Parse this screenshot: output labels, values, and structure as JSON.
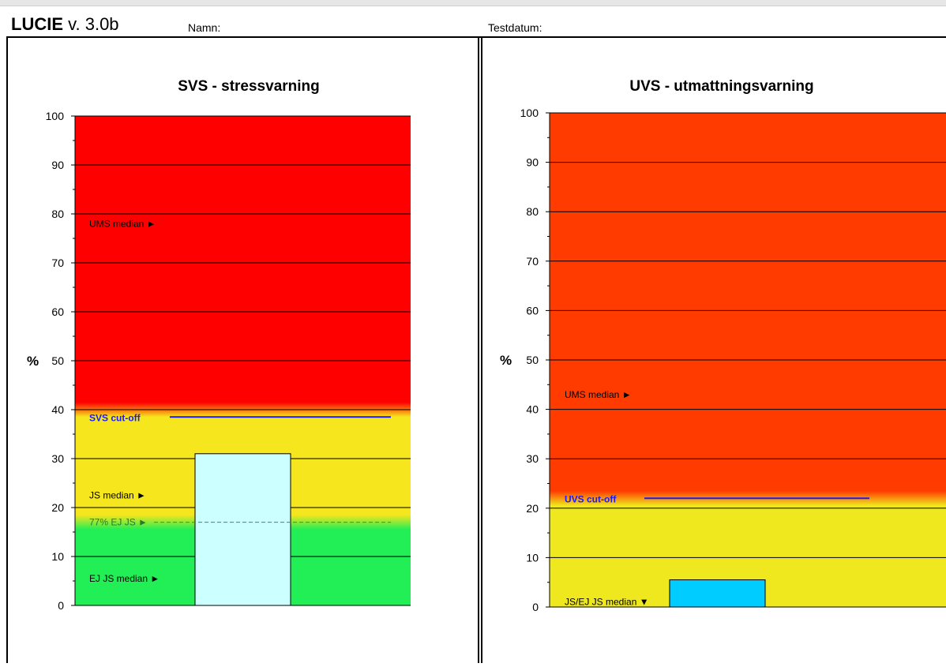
{
  "header": {
    "app_name": "LUCIE",
    "version": "v. 3.0b",
    "name_label": "Namn:",
    "date_label": "Testdatum:"
  },
  "chart_data": [
    {
      "type": "bar",
      "title": "SVS - stressvarning",
      "ylabel": "%",
      "ylim": [
        0,
        100
      ],
      "yticks": [
        0,
        10,
        20,
        30,
        40,
        50,
        60,
        70,
        80,
        90,
        100
      ],
      "grid": true,
      "background_zones": [
        {
          "from": 0,
          "to": 17,
          "color": "#22ee55"
        },
        {
          "from": 17,
          "to": 40,
          "color": "#f5e61e"
        },
        {
          "from": 40,
          "to": 100,
          "color": "#ff0000"
        }
      ],
      "values": [
        31
      ],
      "bar_color": "#ccffff",
      "cutoff": {
        "label": "SVS cut-off",
        "value": 38.5,
        "color": "#1a1aff"
      },
      "reference_line": {
        "label": "77% EJ JS",
        "value": 17,
        "arrow": "►",
        "color": "#2a7a2a"
      },
      "annotations": [
        {
          "label": "UMS median",
          "value": 78,
          "arrow": "►"
        },
        {
          "label": "JS median",
          "value": 22.5,
          "arrow": "►"
        },
        {
          "label": "EJ JS median",
          "value": 5.5,
          "arrow": "►"
        }
      ]
    },
    {
      "type": "bar",
      "title": "UVS - utmattningsvarning",
      "ylabel": "%",
      "ylim": [
        0,
        100
      ],
      "yticks": [
        0,
        10,
        20,
        30,
        40,
        50,
        60,
        70,
        80,
        90,
        100
      ],
      "grid": true,
      "background_zones": [
        {
          "from": 0,
          "to": 22,
          "color": "#f0e81e"
        },
        {
          "from": 22,
          "to": 100,
          "color": "#ff3b00"
        }
      ],
      "values": [
        5.5
      ],
      "bar_color": "#00ccff",
      "cutoff": {
        "label": "UVS cut-off",
        "value": 22,
        "color": "#1a1aff"
      },
      "annotations": [
        {
          "label": "UMS median",
          "value": 43,
          "arrow": "►"
        },
        {
          "label": "JS/EJ JS median",
          "value": 1,
          "arrow": "▼"
        }
      ]
    }
  ]
}
